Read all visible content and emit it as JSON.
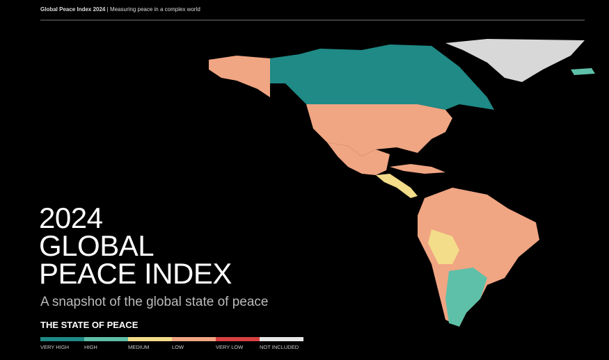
{
  "header": {
    "title": "Global Peace Index 2024",
    "separator": "|",
    "subtitle": "Measuring peace in a complex world"
  },
  "title_lines": [
    "2024",
    "GLOBAL",
    "PEACE INDEX"
  ],
  "subtitle": "A snapshot of the global state of peace",
  "legend": {
    "title": "THE STATE OF PEACE",
    "items": [
      {
        "label": "VERY HIGH",
        "color": "#1f8a86"
      },
      {
        "label": "HIGH",
        "color": "#5ec0a8"
      },
      {
        "label": "MEDIUM",
        "color": "#f3dc8a"
      },
      {
        "label": "LOW",
        "color": "#f0a583"
      },
      {
        "label": "VERY LOW",
        "color": "#d94040"
      },
      {
        "label": "NOT INCLUDED",
        "color": "#e6e6e6"
      }
    ]
  }
}
